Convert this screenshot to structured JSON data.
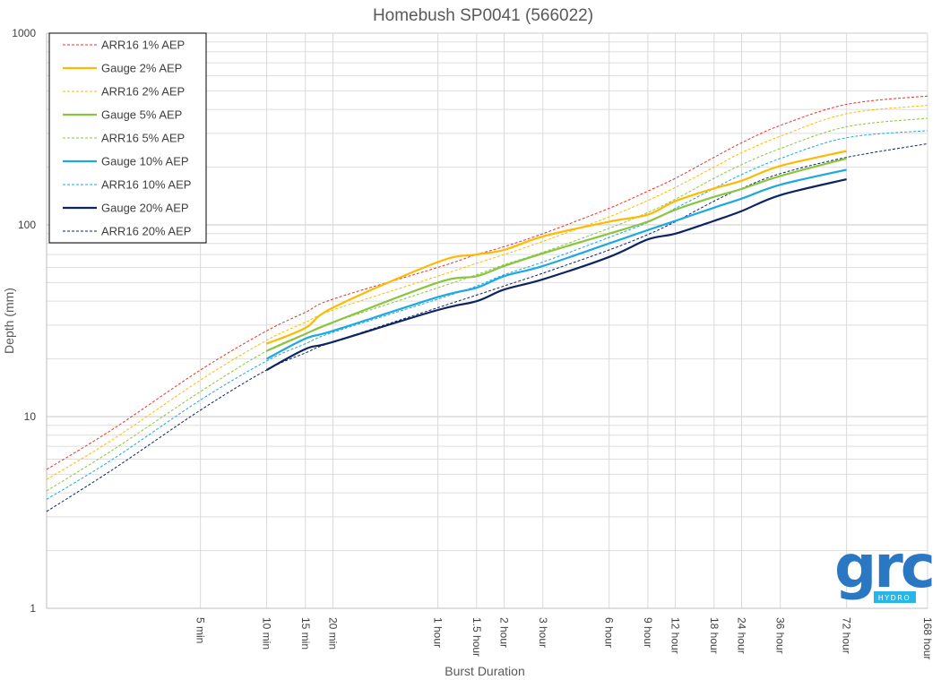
{
  "chart_data": {
    "type": "line",
    "title": "Homebush SP0041 (566022)",
    "xlabel": "Burst Duration",
    "ylabel": "Depth (mm)",
    "yscale": "log",
    "xscale": "log",
    "ylim": [
      1,
      1000
    ],
    "xlim_minutes": [
      1,
      10080
    ],
    "y_ticks": [
      {
        "value": 1,
        "label": "1"
      },
      {
        "value": 10,
        "label": "10"
      },
      {
        "value": 100,
        "label": "100"
      },
      {
        "value": 1000,
        "label": "1000"
      }
    ],
    "x_ticks": [
      {
        "minutes": 5,
        "label": "5 min"
      },
      {
        "minutes": 10,
        "label": "10 min"
      },
      {
        "minutes": 15,
        "label": "15 min"
      },
      {
        "minutes": 20,
        "label": "20 min"
      },
      {
        "minutes": 60,
        "label": "1 hour"
      },
      {
        "minutes": 90,
        "label": "1.5 hour"
      },
      {
        "minutes": 120,
        "label": "2 hour"
      },
      {
        "minutes": 180,
        "label": "3 hour"
      },
      {
        "minutes": 360,
        "label": "6 hour"
      },
      {
        "minutes": 540,
        "label": "9 hour"
      },
      {
        "minutes": 720,
        "label": "12 hour"
      },
      {
        "minutes": 1080,
        "label": "18 hour"
      },
      {
        "minutes": 1440,
        "label": "24 hour"
      },
      {
        "minutes": 2160,
        "label": "36 hour"
      },
      {
        "minutes": 4320,
        "label": "72 hour"
      },
      {
        "minutes": 10080,
        "label": "168 hour"
      }
    ],
    "grid": true,
    "legend_position": "top-left",
    "series": [
      {
        "name": "ARR16 1% AEP",
        "color": "#e8322e",
        "style": "dashed",
        "x": [
          1,
          2,
          5,
          10,
          15,
          20,
          60,
          90,
          120,
          180,
          360,
          540,
          720,
          1080,
          1440,
          2160,
          4320,
          10080
        ],
        "y": [
          5.3,
          8.6,
          17.5,
          28,
          35,
          41,
          60,
          70,
          77,
          90,
          122,
          150,
          175,
          225,
          268,
          330,
          425,
          470
        ]
      },
      {
        "name": "Gauge 2% AEP",
        "color": "#ffb900",
        "style": "solid",
        "x": [
          10,
          15,
          20,
          60,
          90,
          120,
          180,
          360,
          540,
          720,
          1080,
          1440,
          2160,
          4320
        ],
        "y": [
          24,
          29,
          37,
          64,
          70,
          74,
          87,
          104,
          113,
          133,
          155,
          170,
          203,
          243
        ]
      },
      {
        "name": "ARR16 2% AEP",
        "color": "#ffb900",
        "style": "dashed",
        "x": [
          1,
          2,
          5,
          10,
          15,
          20,
          60,
          90,
          120,
          180,
          360,
          540,
          720,
          1080,
          1440,
          2160,
          4320,
          10080
        ],
        "y": [
          4.7,
          7.6,
          15.5,
          25,
          31,
          36,
          54,
          63,
          70,
          82,
          110,
          134,
          157,
          200,
          238,
          290,
          380,
          420
        ]
      },
      {
        "name": "Gauge 5% AEP",
        "color": "#8ac53f",
        "style": "solid",
        "x": [
          10,
          15,
          20,
          60,
          90,
          120,
          180,
          360,
          540,
          720,
          1080,
          1440,
          2160,
          4320
        ],
        "y": [
          22,
          27,
          31,
          50,
          54,
          61,
          71,
          90,
          104,
          120,
          140,
          154,
          180,
          222
        ]
      },
      {
        "name": "ARR16 5% AEP",
        "color": "#8ac53f",
        "style": "dashed",
        "x": [
          1,
          2,
          5,
          10,
          15,
          20,
          60,
          90,
          120,
          180,
          360,
          540,
          720,
          1080,
          1440,
          2160,
          4320,
          10080
        ],
        "y": [
          4.1,
          6.7,
          13.5,
          22,
          27,
          31,
          47,
          55,
          62,
          72,
          96,
          116,
          136,
          175,
          206,
          250,
          325,
          360
        ]
      },
      {
        "name": "Gauge 10% AEP",
        "color": "#1ea7e1",
        "style": "solid",
        "x": [
          10,
          15,
          20,
          60,
          90,
          120,
          180,
          360,
          540,
          720,
          1080,
          1440,
          2160,
          4320
        ],
        "y": [
          20,
          25.5,
          28,
          42,
          47,
          54,
          61,
          80,
          94,
          105,
          123,
          137,
          162,
          194
        ]
      },
      {
        "name": "ARR16 10% AEP",
        "color": "#1ea7e1",
        "style": "dashed",
        "x": [
          1,
          2,
          5,
          10,
          15,
          20,
          60,
          90,
          120,
          180,
          360,
          540,
          720,
          1080,
          1440,
          2160,
          4320,
          10080
        ],
        "y": [
          3.7,
          6.0,
          12.2,
          19.5,
          24,
          27.5,
          41,
          48,
          55,
          64,
          86,
          103,
          122,
          155,
          183,
          222,
          285,
          310
        ]
      },
      {
        "name": "Gauge 20% AEP",
        "color": "#0c2461",
        "style": "solid",
        "x": [
          10,
          15,
          20,
          60,
          90,
          120,
          180,
          360,
          540,
          720,
          1080,
          1440,
          2160,
          4320
        ],
        "y": [
          17.5,
          22.5,
          24.5,
          36,
          40,
          46,
          52,
          68,
          84,
          90,
          105,
          118,
          143,
          173
        ]
      },
      {
        "name": "ARR16 20% AEP",
        "color": "#0c2461",
        "style": "dashed",
        "x": [
          1,
          2,
          5,
          10,
          15,
          20,
          60,
          90,
          120,
          180,
          360,
          540,
          720,
          1080,
          1440,
          2160,
          4320,
          10080
        ],
        "y": [
          3.2,
          5.3,
          10.8,
          17.5,
          21.5,
          24.5,
          37,
          43,
          48,
          56,
          74,
          89,
          104,
          133,
          155,
          185,
          225,
          265
        ]
      }
    ]
  },
  "logo": {
    "text": "grc",
    "subtext": "HYDRO",
    "color": "#2a78c4",
    "accent": "#27b6e6"
  }
}
